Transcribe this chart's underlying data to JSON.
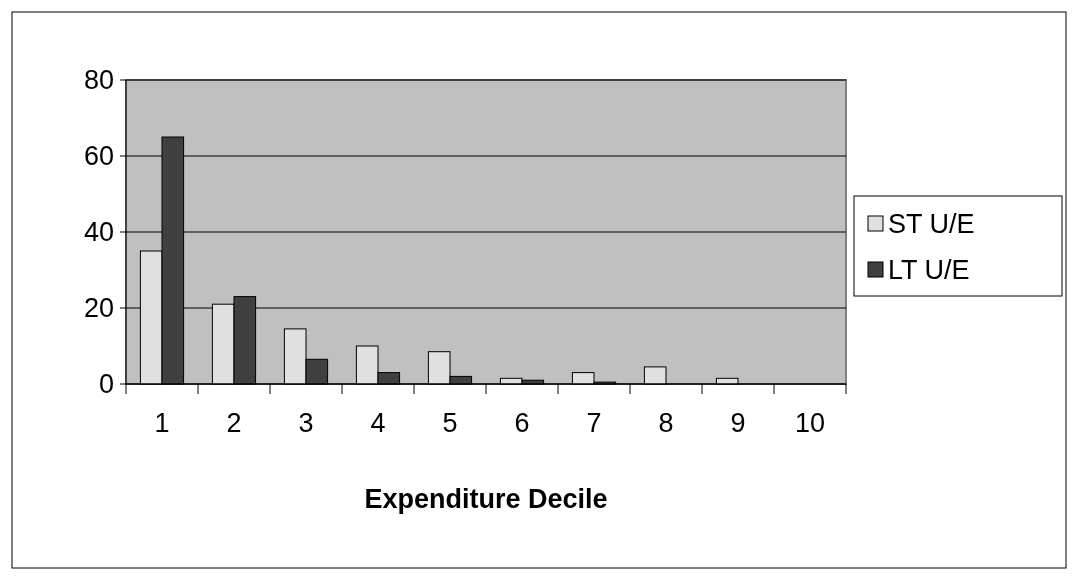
{
  "chart_data": {
    "type": "bar",
    "xlabel": "Expenditure Decile",
    "categories": [
      "1",
      "2",
      "3",
      "4",
      "5",
      "6",
      "7",
      "8",
      "9",
      "10"
    ],
    "series": [
      {
        "name": "ST U/E",
        "color": "#e0e0e0",
        "values": [
          35,
          21,
          14.5,
          10,
          8.5,
          1.5,
          3,
          4.5,
          1.5,
          0
        ]
      },
      {
        "name": "LT U/E",
        "color": "#404040",
        "values": [
          65,
          23,
          6.5,
          3,
          2,
          1,
          0.5,
          0,
          0,
          0
        ]
      }
    ],
    "ylim": [
      0,
      80
    ],
    "yticks": [
      0,
      20,
      40,
      60,
      80
    ],
    "grid": "y",
    "legend": "right"
  }
}
